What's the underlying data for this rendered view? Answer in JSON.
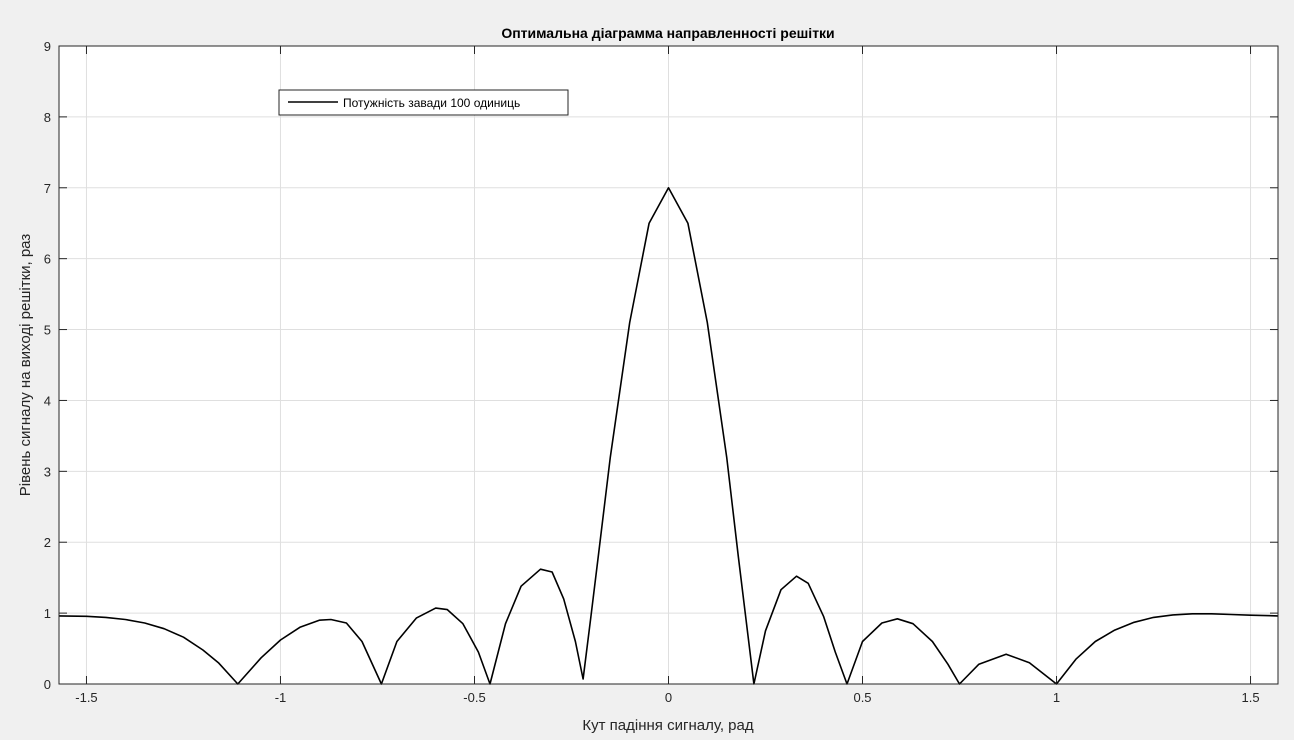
{
  "chart_data": {
    "type": "line",
    "title": "Оптимальна діаграмма направленності решітки",
    "xlabel": "Кут падіння сигналу, рад",
    "ylabel": "Рівень сигналу на виході решітки, раз",
    "xlim": [
      -1.5708,
      1.5708
    ],
    "ylim": [
      0,
      9
    ],
    "xticks": [
      -1.5,
      -1,
      -0.5,
      0,
      0.5,
      1,
      1.5
    ],
    "xtick_labels": [
      "-1.5",
      "-1",
      "-0.5",
      "0",
      "0.5",
      "1",
      "1.5"
    ],
    "yticks": [
      0,
      1,
      2,
      3,
      4,
      5,
      6,
      7,
      8,
      9
    ],
    "ytick_labels": [
      "0",
      "1",
      "2",
      "3",
      "4",
      "5",
      "6",
      "7",
      "8",
      "9"
    ],
    "grid": true,
    "legend_position": "top-left",
    "series": [
      {
        "name": "Потужність завади 100 одиниць",
        "color": "#000000",
        "points": [
          [
            -1.5708,
            0.96
          ],
          [
            -1.5,
            0.955
          ],
          [
            -1.45,
            0.94
          ],
          [
            -1.4,
            0.91
          ],
          [
            -1.35,
            0.86
          ],
          [
            -1.3,
            0.78
          ],
          [
            -1.25,
            0.66
          ],
          [
            -1.2,
            0.48
          ],
          [
            -1.16,
            0.3
          ],
          [
            -1.11,
            0.0
          ],
          [
            -1.05,
            0.37
          ],
          [
            -1.0,
            0.62
          ],
          [
            -0.95,
            0.8
          ],
          [
            -0.9,
            0.9
          ],
          [
            -0.87,
            0.91
          ],
          [
            -0.83,
            0.86
          ],
          [
            -0.79,
            0.6
          ],
          [
            -0.74,
            0.0
          ],
          [
            -0.7,
            0.6
          ],
          [
            -0.65,
            0.93
          ],
          [
            -0.6,
            1.07
          ],
          [
            -0.57,
            1.05
          ],
          [
            -0.53,
            0.85
          ],
          [
            -0.49,
            0.45
          ],
          [
            -0.46,
            0.0
          ],
          [
            -0.42,
            0.85
          ],
          [
            -0.38,
            1.38
          ],
          [
            -0.33,
            1.62
          ],
          [
            -0.3,
            1.58
          ],
          [
            -0.27,
            1.2
          ],
          [
            -0.24,
            0.6
          ],
          [
            -0.22,
            0.07
          ],
          [
            -0.2,
            0.95
          ],
          [
            -0.18,
            1.85
          ],
          [
            -0.15,
            3.2
          ],
          [
            -0.1,
            5.1
          ],
          [
            -0.05,
            6.5
          ],
          [
            0.0,
            7.0
          ],
          [
            0.05,
            6.5
          ],
          [
            0.1,
            5.1
          ],
          [
            0.15,
            3.2
          ],
          [
            0.18,
            1.8
          ],
          [
            0.2,
            0.9
          ],
          [
            0.22,
            0.0
          ],
          [
            0.25,
            0.75
          ],
          [
            0.29,
            1.33
          ],
          [
            0.33,
            1.52
          ],
          [
            0.36,
            1.42
          ],
          [
            0.4,
            0.95
          ],
          [
            0.43,
            0.45
          ],
          [
            0.46,
            0.0
          ],
          [
            0.5,
            0.6
          ],
          [
            0.55,
            0.86
          ],
          [
            0.59,
            0.92
          ],
          [
            0.63,
            0.85
          ],
          [
            0.68,
            0.6
          ],
          [
            0.72,
            0.28
          ],
          [
            0.75,
            0.0
          ],
          [
            0.8,
            0.28
          ],
          [
            0.87,
            0.42
          ],
          [
            0.93,
            0.3
          ],
          [
            1.0,
            0.0
          ],
          [
            1.05,
            0.35
          ],
          [
            1.1,
            0.6
          ],
          [
            1.15,
            0.76
          ],
          [
            1.2,
            0.87
          ],
          [
            1.25,
            0.94
          ],
          [
            1.3,
            0.975
          ],
          [
            1.35,
            0.99
          ],
          [
            1.4,
            0.99
          ],
          [
            1.45,
            0.98
          ],
          [
            1.5,
            0.97
          ],
          [
            1.5708,
            0.96
          ]
        ]
      }
    ]
  }
}
